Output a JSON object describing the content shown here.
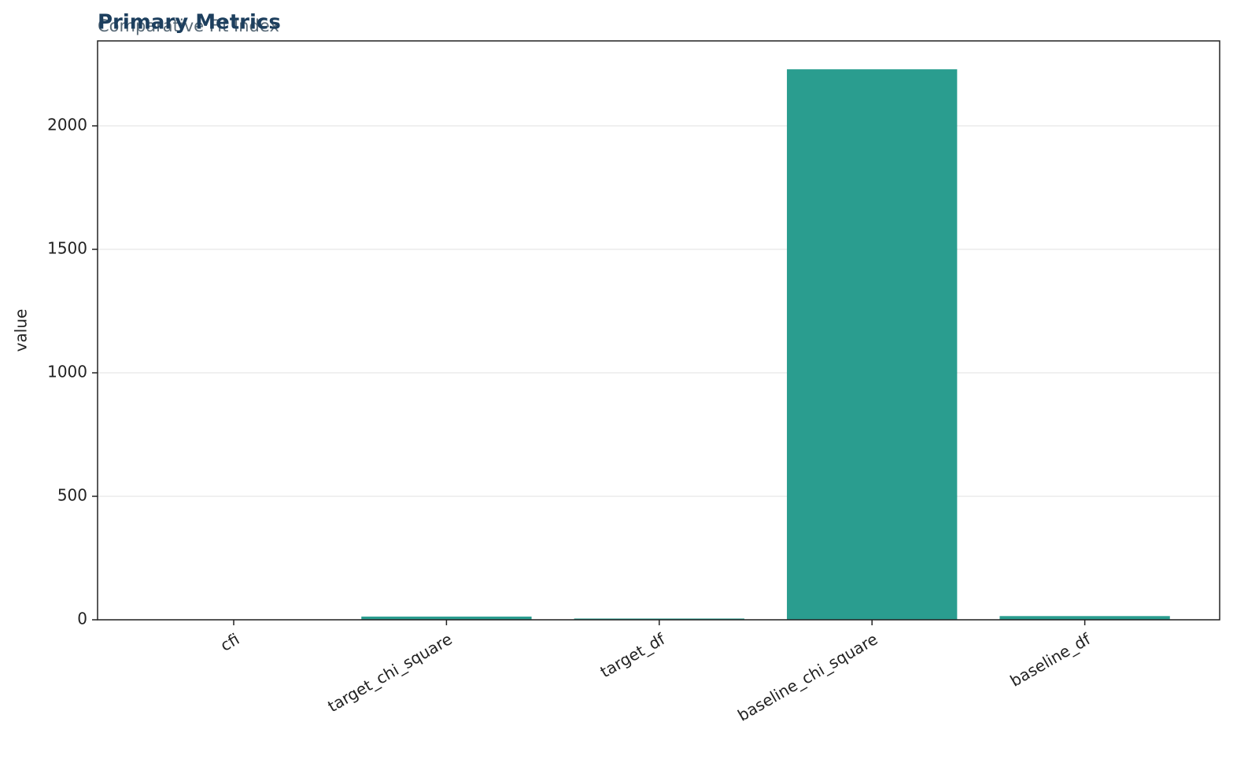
{
  "chart_data": {
    "type": "bar",
    "title": "Primary Metrics",
    "subtitle": "Comparative Fit Index",
    "y_label": "value",
    "categories": [
      "cfi",
      "target_chi_square",
      "target_df",
      "baseline_chi_square",
      "baseline_df"
    ],
    "values": [
      0.99,
      13,
      5,
      2229,
      15
    ],
    "color": "#2a9d8f",
    "ylim": [
      0,
      2344
    ],
    "yticks": [
      0,
      500,
      1000,
      1500,
      2000
    ],
    "grid": true
  }
}
